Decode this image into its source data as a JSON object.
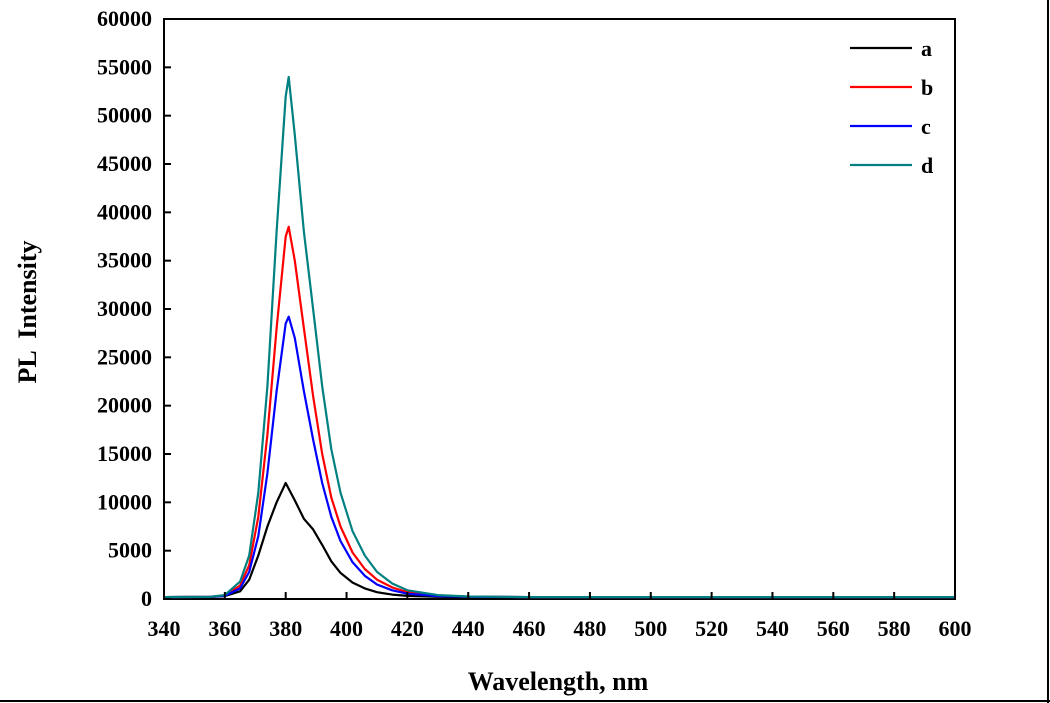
{
  "chart_data": {
    "type": "line",
    "title": "",
    "xlabel": "Wavelength, nm",
    "ylabel": "PL  Intensity",
    "xlim": [
      340,
      600
    ],
    "ylim": [
      0,
      60000
    ],
    "xticks": [
      340,
      360,
      380,
      400,
      420,
      440,
      460,
      480,
      500,
      520,
      540,
      560,
      580,
      600
    ],
    "yticks": [
      0,
      5000,
      10000,
      15000,
      20000,
      25000,
      30000,
      35000,
      40000,
      45000,
      50000,
      55000,
      60000
    ],
    "grid": false,
    "legend_position": "top-right",
    "series": [
      {
        "name": "a",
        "color": "#000000",
        "x": [
          340,
          355,
          360,
          365,
          368,
          371,
          374,
          377,
          380,
          383,
          386,
          389,
          392,
          395,
          398,
          402,
          406,
          410,
          415,
          420,
          430,
          440,
          460,
          600
        ],
        "y": [
          200,
          220,
          300,
          800,
          2000,
          4500,
          7500,
          10000,
          12000,
          10200,
          8300,
          7200,
          5600,
          3900,
          2700,
          1700,
          1100,
          700,
          450,
          320,
          230,
          200,
          200,
          200
        ]
      },
      {
        "name": "b",
        "color": "#ff0000",
        "x": [
          340,
          355,
          360,
          365,
          368,
          371,
          374,
          377,
          380,
          381,
          383,
          386,
          389,
          392,
          395,
          398,
          402,
          406,
          410,
          415,
          420,
          430,
          440,
          460,
          600
        ],
        "y": [
          200,
          220,
          350,
          1400,
          3500,
          8500,
          17000,
          28000,
          37500,
          38500,
          35000,
          28000,
          21000,
          15000,
          10500,
          7500,
          4800,
          3100,
          2000,
          1200,
          700,
          350,
          250,
          200,
          200
        ]
      },
      {
        "name": "c",
        "color": "#0000ff",
        "x": [
          340,
          355,
          360,
          365,
          368,
          371,
          374,
          377,
          380,
          381,
          383,
          386,
          389,
          392,
          395,
          398,
          402,
          406,
          410,
          415,
          420,
          430,
          440,
          460,
          600
        ],
        "y": [
          200,
          220,
          320,
          1100,
          2800,
          6500,
          13000,
          21500,
          28500,
          29200,
          27000,
          21500,
          16500,
          12000,
          8500,
          6000,
          3800,
          2400,
          1500,
          900,
          550,
          300,
          230,
          200,
          200
        ]
      },
      {
        "name": "d",
        "color": "#008080",
        "x": [
          340,
          355,
          360,
          365,
          368,
          371,
          374,
          377,
          380,
          381,
          383,
          386,
          389,
          392,
          395,
          398,
          402,
          406,
          410,
          415,
          420,
          430,
          440,
          460,
          600
        ],
        "y": [
          200,
          220,
          400,
          1800,
          4500,
          11000,
          22000,
          38000,
          52000,
          54000,
          48000,
          38000,
          30000,
          22000,
          15500,
          11000,
          7000,
          4500,
          2800,
          1600,
          900,
          400,
          260,
          200,
          200
        ]
      }
    ]
  }
}
